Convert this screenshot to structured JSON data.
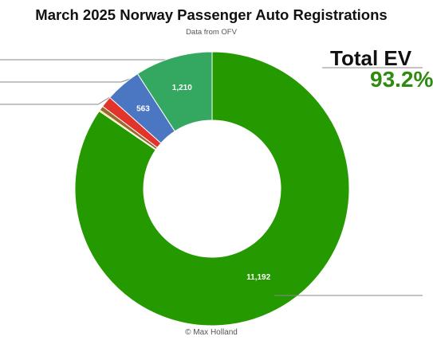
{
  "chart_data": {
    "type": "pie",
    "title": "March 2025 Norway Passenger Auto Registrations",
    "subtitle": "Data from OFV",
    "credit": "© Max Holland",
    "headline": {
      "label": "Total EV",
      "value": "93.2%"
    },
    "series": [
      {
        "value": 11192,
        "label": "11,192",
        "color": "#259a00"
      },
      {
        "value": 20,
        "color": "#f5c400"
      },
      {
        "value": 70,
        "color": "#9e6a2b"
      },
      {
        "value": 175,
        "color": "#e2342b"
      },
      {
        "value": 563,
        "label": "563",
        "color": "#4b76c2"
      },
      {
        "value": 1210,
        "label": "1,210",
        "color": "#34a861"
      }
    ],
    "legend": "none"
  },
  "colors": {
    "headline_value": "#2f8a12",
    "leader_line": "#888888"
  }
}
